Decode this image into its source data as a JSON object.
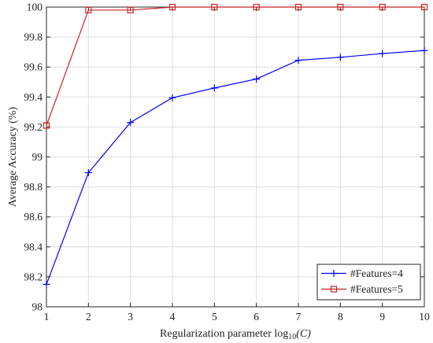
{
  "chart_data": {
    "type": "line",
    "title": "",
    "xlabel_prefix": "Regularization parameter log",
    "xlabel_sub": "10",
    "xlabel_arg": "(C)",
    "ylabel": "Average Accuracy (%)",
    "x": [
      1,
      2,
      3,
      4,
      5,
      6,
      7,
      8,
      9,
      10
    ],
    "xlim": [
      1,
      10
    ],
    "ylim": [
      98,
      100
    ],
    "xticks": [
      1,
      2,
      3,
      4,
      5,
      6,
      7,
      8,
      9,
      10
    ],
    "yticks": [
      98,
      98.2,
      98.4,
      98.6,
      98.8,
      99,
      99.2,
      99.4,
      99.6,
      99.8,
      100
    ],
    "ytick_labels": [
      "98",
      "98.2",
      "98.4",
      "98.6",
      "98.8",
      "99",
      "99.2",
      "99.4",
      "99.6",
      "99.8",
      "100"
    ],
    "grid": true,
    "legend_position": "bottom-right",
    "series": [
      {
        "name": "#Features=4",
        "color": "#0000ff",
        "marker": "plus",
        "values": [
          98.15,
          98.895,
          99.23,
          99.395,
          99.46,
          99.52,
          99.645,
          99.665,
          99.69,
          99.71
        ]
      },
      {
        "name": "#Features=5",
        "color": "#cc2222",
        "marker": "square",
        "values": [
          99.21,
          99.98,
          99.98,
          100,
          100,
          100,
          100,
          100,
          100,
          100
        ]
      }
    ]
  }
}
